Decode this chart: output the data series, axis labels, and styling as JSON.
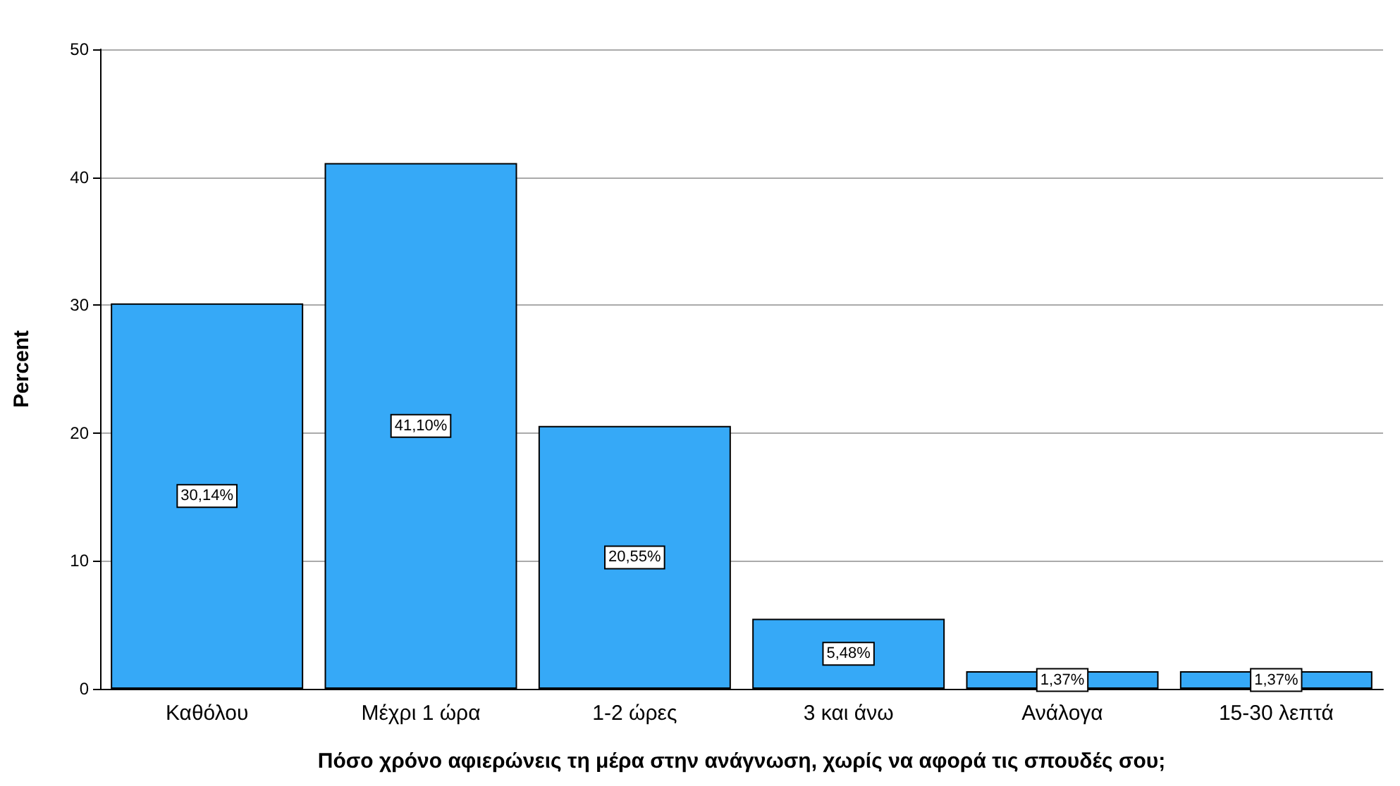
{
  "chart_data": {
    "type": "bar",
    "xlabel": "Πόσο χρόνο αφιερώνεις τη μέρα στην ανάγνωση, χωρίς να αφορά τις σπουδές σου;",
    "ylabel": "Percent",
    "categories": [
      "Καθόλου",
      "Μέχρι 1 ώρα",
      "1-2 ώρες",
      "3 και άνω",
      "Ανάλογα",
      "15-30 λεπτά"
    ],
    "values": [
      30.14,
      41.1,
      20.55,
      5.48,
      1.37,
      1.37
    ],
    "value_labels": [
      "30,14%",
      "41,10%",
      "20,55%",
      "5,48%",
      "1,37%",
      "1,37%"
    ],
    "color": "#36a9f7",
    "ylim": [
      0,
      50
    ],
    "yticks": [
      0,
      10,
      20,
      30,
      40,
      50
    ],
    "grid": "y"
  }
}
